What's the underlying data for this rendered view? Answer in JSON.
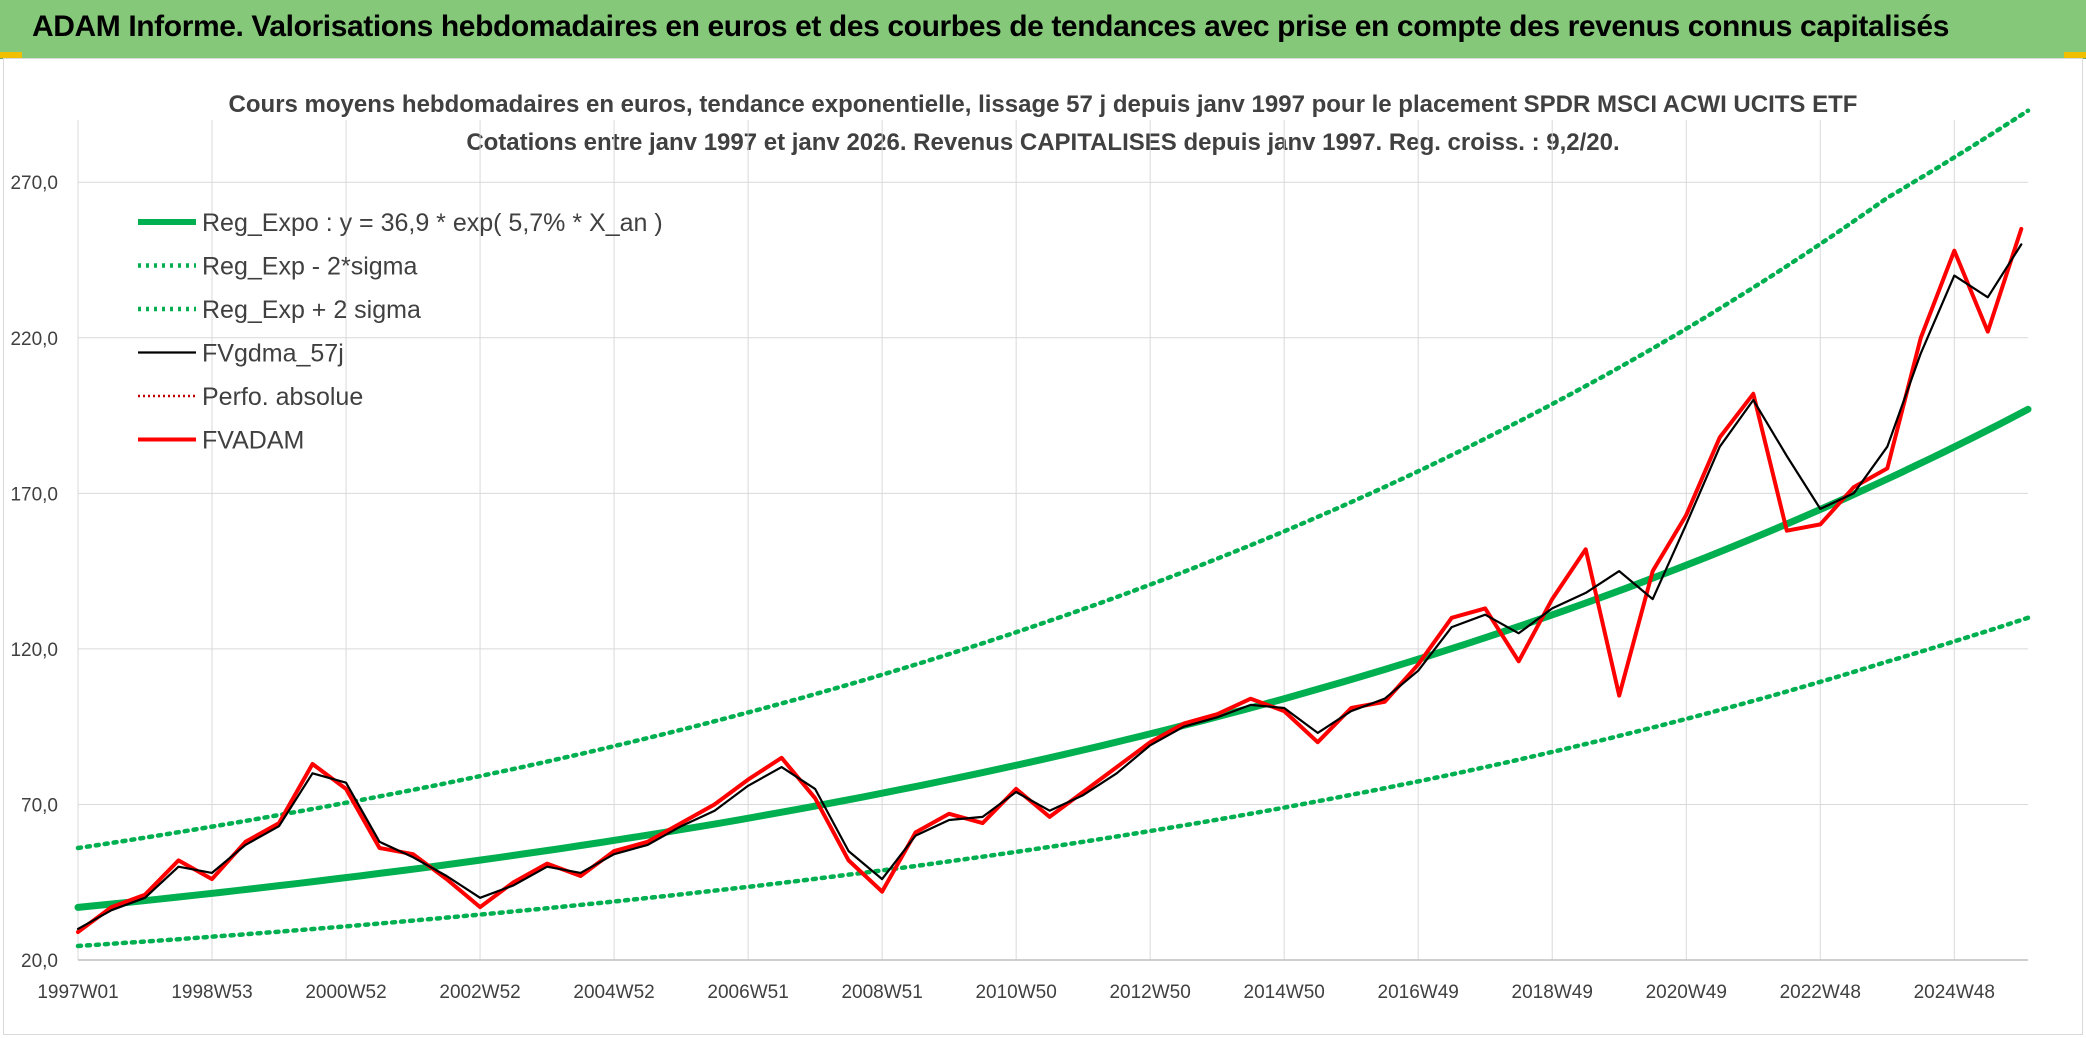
{
  "banner": {
    "title": "ADAM Informe. Valorisations hebdomadaires en euros et des courbes de tendances avec prise en compte des revenus connus capitalisés",
    "background": "#86c87a",
    "accent": "#f0c000"
  },
  "chart_data": {
    "type": "line",
    "title": "Cours moyens hebdomadaires en euros, tendance exponentielle, lissage 57 j depuis janv 1997 pour le placement SPDR MSCI ACWI UCITS ETF",
    "subtitle": "Cotations entre janv 1997 et janv 2026. Revenus CAPITALISES depuis janv 1997. Reg. croiss. : 9,2/20.",
    "xlabel": "",
    "ylabel": "",
    "x_range": [
      1997.0,
      2026.1
    ],
    "ylim": [
      20,
      290
    ],
    "y_ticks": [
      "20,0",
      "70,0",
      "120,0",
      "170,0",
      "220,0",
      "270,0"
    ],
    "x_ticks": [
      "1997W01",
      "1998W53",
      "2000W52",
      "2002W52",
      "2004W52",
      "2006W51",
      "2008W51",
      "2010W50",
      "2012W50",
      "2014W50",
      "2016W49",
      "2018W49",
      "2020W49",
      "2022W48",
      "2024W48"
    ],
    "grid": true,
    "legend_position": "top-left",
    "series": [
      {
        "name": "Reg_Expo : y = 36,9 * exp( 5,7% *  X_an )",
        "color": "#00b050",
        "style": "solid-thick",
        "x": [
          1997.0,
          2000.0,
          2003.0,
          2006.0,
          2009.0,
          2012.0,
          2015.0,
          2018.0,
          2021.0,
          2024.0,
          2026.1
        ],
        "y": [
          36.9,
          43.9,
          52.1,
          61.9,
          73.6,
          87.5,
          104.0,
          123.6,
          146.9,
          174.6,
          197.0
        ]
      },
      {
        "name": "Reg_Exp - 2*sigma",
        "color": "#00b050",
        "style": "dotted",
        "x": [
          1997.0,
          2000.0,
          2003.0,
          2006.0,
          2009.0,
          2012.0,
          2015.0,
          2018.0,
          2021.0,
          2024.0,
          2026.1
        ],
        "y": [
          24.5,
          29.1,
          34.6,
          41.1,
          48.8,
          58.0,
          69.0,
          82.0,
          97.5,
          115.9,
          130.0
        ]
      },
      {
        "name": "Reg_Exp + 2 sigma",
        "color": "#00b050",
        "style": "dotted",
        "x": [
          1997.0,
          2000.0,
          2003.0,
          2006.0,
          2009.0,
          2012.0,
          2015.0,
          2018.0,
          2021.0,
          2024.0,
          2026.1
        ],
        "y": [
          56.0,
          66.6,
          79.1,
          94.0,
          111.7,
          132.8,
          157.8,
          187.6,
          222.9,
          265.0,
          293.0
        ]
      },
      {
        "name": "FVgdma_57j",
        "color": "#000000",
        "style": "solid",
        "x": [
          1997.0,
          1997.5,
          1998.0,
          1998.5,
          1999.0,
          1999.5,
          2000.0,
          2000.5,
          2001.0,
          2001.5,
          2002.0,
          2002.5,
          2003.0,
          2003.5,
          2004.0,
          2004.5,
          2005.0,
          2005.5,
          2006.0,
          2006.5,
          2007.0,
          2007.5,
          2008.0,
          2008.5,
          2009.0,
          2009.5,
          2010.0,
          2010.5,
          2011.0,
          2011.5,
          2012.0,
          2012.5,
          2013.0,
          2013.5,
          2014.0,
          2014.5,
          2015.0,
          2015.5,
          2016.0,
          2016.5,
          2017.0,
          2017.5,
          2018.0,
          2018.5,
          2019.0,
          2019.5,
          2020.0,
          2020.5,
          2021.0,
          2021.5,
          2022.0,
          2022.5,
          2023.0,
          2023.5,
          2024.0,
          2024.5,
          2025.0,
          2025.5,
          2026.0
        ],
        "y": [
          30,
          36,
          40,
          50,
          48,
          57,
          63,
          80,
          77,
          58,
          53,
          47,
          40,
          44,
          50,
          48,
          54,
          57,
          63,
          68,
          76,
          82,
          75,
          55,
          46,
          60,
          65,
          66,
          74,
          68,
          73,
          80,
          89,
          95,
          98,
          102,
          101,
          93,
          100,
          104,
          113,
          127,
          131,
          125,
          133,
          138,
          145,
          136,
          160,
          185,
          200,
          182,
          165,
          170,
          185,
          215,
          240,
          233,
          250
        ]
      },
      {
        "name": "Perfo. absolue",
        "color": "#c00000",
        "style": "dotted",
        "x": [],
        "y": []
      },
      {
        "name": "FVADAM",
        "color": "#ff0000",
        "style": "solid-thick",
        "x": [
          1997.0,
          1997.5,
          1998.0,
          1998.5,
          1999.0,
          1999.5,
          2000.0,
          2000.5,
          2001.0,
          2001.5,
          2002.0,
          2002.5,
          2003.0,
          2003.5,
          2004.0,
          2004.5,
          2005.0,
          2005.5,
          2006.0,
          2006.5,
          2007.0,
          2007.5,
          2008.0,
          2008.5,
          2009.0,
          2009.5,
          2010.0,
          2010.5,
          2011.0,
          2011.5,
          2012.0,
          2012.5,
          2013.0,
          2013.5,
          2014.0,
          2014.5,
          2015.0,
          2015.5,
          2016.0,
          2016.5,
          2017.0,
          2017.5,
          2018.0,
          2018.5,
          2019.0,
          2019.5,
          2020.0,
          2020.5,
          2021.0,
          2021.5,
          2022.0,
          2022.5,
          2023.0,
          2023.5,
          2024.0,
          2024.5,
          2025.0,
          2025.5,
          2026.0
        ],
        "y": [
          29,
          37,
          41,
          52,
          46,
          58,
          64,
          83,
          75,
          56,
          54,
          46,
          37,
          45,
          51,
          47,
          55,
          58,
          64,
          70,
          78,
          85,
          72,
          52,
          42,
          61,
          67,
          64,
          75,
          66,
          74,
          82,
          90,
          96,
          99,
          104,
          100,
          90,
          101,
          103,
          115,
          130,
          133,
          116,
          136,
          152,
          105,
          145,
          163,
          188,
          202,
          158,
          160,
          172,
          178,
          220,
          248,
          222,
          255
        ]
      }
    ]
  }
}
